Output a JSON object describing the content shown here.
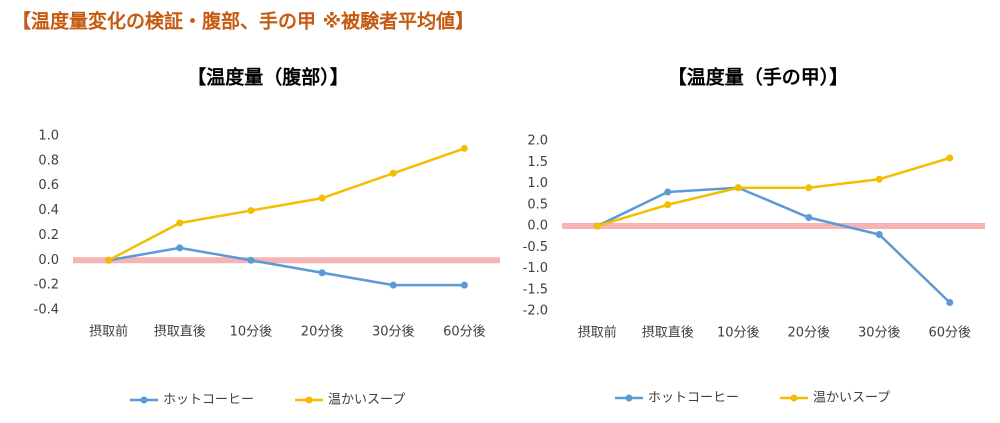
{
  "page_title": "【温度量変化の検証・腹部、手の甲 ※被験者平均値】",
  "chart_data": [
    {
      "type": "line",
      "title": "【温度量（腹部）】",
      "categories": [
        "摂取前",
        "摂取直後",
        "10分後",
        "20分後",
        "30分後",
        "60分後"
      ],
      "series": [
        {
          "name": "ホットコーヒー",
          "color": "#5b9bd5",
          "values": [
            0,
            0.1,
            0,
            -0.1,
            -0.2,
            -0.2
          ]
        },
        {
          "name": "温かいスープ",
          "color": "#f5bd00",
          "values": [
            0,
            0.3,
            0.4,
            0.5,
            0.7,
            0.9
          ]
        }
      ],
      "ylim": [
        -0.4,
        1.0
      ],
      "yticks": [
        -0.4,
        -0.2,
        {
          "value": 0,
          "label": "0.0"
        },
        0.2,
        0.4,
        0.6,
        0.8,
        {
          "value": 1,
          "label": "1.0"
        }
      ],
      "reference_line": {
        "value": 0,
        "color": "#f08080"
      },
      "legend": "bottom"
    },
    {
      "type": "line",
      "title": "【温度量（手の甲）】",
      "categories": [
        "摂取前",
        "摂取直後",
        "10分後",
        "20分後",
        "30分後",
        "60分後"
      ],
      "series": [
        {
          "name": "ホットコーヒー",
          "color": "#5b9bd5",
          "values": [
            0,
            0.8,
            0.9,
            0.2,
            -0.2,
            -1.8
          ]
        },
        {
          "name": "温かいスープ",
          "color": "#f5bd00",
          "values": [
            0,
            0.5,
            0.9,
            0.9,
            1.1,
            1.6
          ]
        }
      ],
      "ylim": [
        -2,
        2
      ],
      "yticks": [
        {
          "value": -2,
          "label": "-2.0"
        },
        -1.5,
        {
          "value": -1,
          "label": "-1.0"
        },
        -0.5,
        {
          "value": 0,
          "label": "0.0"
        },
        0.5,
        {
          "value": 1,
          "label": "1.0"
        },
        1.5,
        {
          "value": 2,
          "label": "2.0"
        }
      ],
      "reference_line": {
        "value": 0,
        "color": "#f08080"
      },
      "legend": "bottom"
    }
  ]
}
